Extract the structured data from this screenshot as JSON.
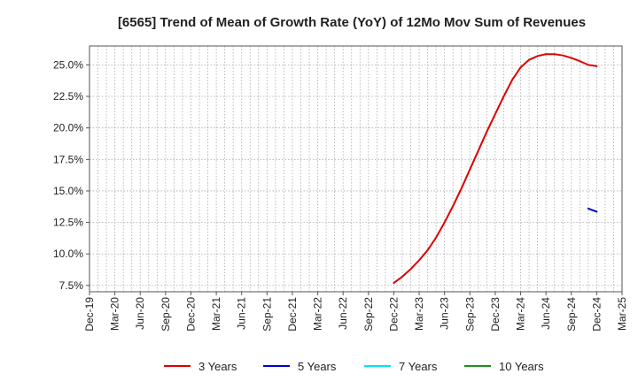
{
  "chart_data": {
    "type": "line",
    "title": "[6565]  Trend of Mean of Growth Rate (YoY) of 12Mo Mov Sum of Revenues",
    "xlabel": "",
    "ylabel": "",
    "ylim": [
      7.0,
      26.5
    ],
    "y_ticks": [
      7.5,
      10.0,
      12.5,
      15.0,
      17.5,
      20.0,
      22.5,
      25.0
    ],
    "y_tick_labels": [
      "7.5%",
      "10.0%",
      "12.5%",
      "15.0%",
      "17.5%",
      "20.0%",
      "22.5%",
      "25.0%"
    ],
    "x_tick_labels": [
      "Dec-19",
      "Mar-20",
      "Jun-20",
      "Sep-20",
      "Dec-20",
      "Mar-21",
      "Jun-21",
      "Sep-21",
      "Dec-21",
      "Mar-22",
      "Jun-22",
      "Sep-22",
      "Dec-22",
      "Mar-23",
      "Jun-23",
      "Sep-23",
      "Dec-23",
      "Mar-24",
      "Jun-24",
      "Sep-24",
      "Dec-24",
      "Mar-25"
    ],
    "grid": true,
    "legend_position": "bottom",
    "series": [
      {
        "name": "3 Years",
        "color": "#dd0000",
        "x_index": [
          36,
          37,
          38,
          39,
          40,
          41,
          42,
          43,
          44,
          45,
          46,
          47,
          48,
          49,
          50,
          51,
          52,
          53,
          54,
          55,
          56,
          57,
          58,
          59,
          60
        ],
        "values": [
          7.7,
          8.2,
          8.8,
          9.5,
          10.3,
          11.3,
          12.5,
          13.8,
          15.2,
          16.7,
          18.2,
          19.7,
          21.1,
          22.5,
          23.8,
          24.8,
          25.4,
          25.7,
          25.85,
          25.85,
          25.75,
          25.55,
          25.3,
          25.0,
          24.9
        ]
      },
      {
        "name": "5 Years",
        "color": "#0000cc",
        "x_index": [
          59,
          60
        ],
        "values": [
          13.6,
          13.35
        ]
      },
      {
        "name": "7 Years",
        "color": "#00e5ee",
        "x_index": [],
        "values": []
      },
      {
        "name": "10 Years",
        "color": "#228b22",
        "x_index": [],
        "values": []
      }
    ]
  }
}
